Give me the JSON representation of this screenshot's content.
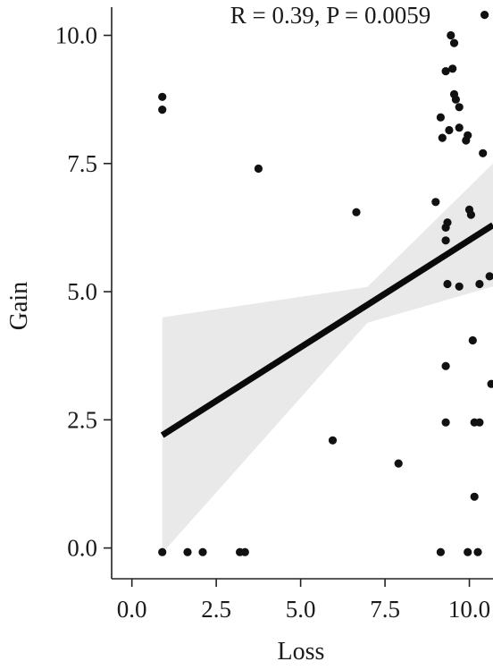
{
  "annotation": "R = 0.39, P = 0.0059",
  "chart_data": {
    "type": "scatter",
    "title": "",
    "xlabel": "Loss",
    "ylabel": "Gain",
    "xlim": [
      -0.6,
      10.7
    ],
    "ylim": [
      -0.6,
      10.55
    ],
    "x_ticks": [
      0.0,
      2.5,
      5.0,
      7.5,
      10.0
    ],
    "x_tick_labels": [
      "0.0",
      "2.5",
      "5.0",
      "7.5",
      "10.0"
    ],
    "y_ticks": [
      0.0,
      2.5,
      5.0,
      7.5,
      10.0
    ],
    "y_tick_labels": [
      "0.0",
      "2.5",
      "5.0",
      "7.5",
      "10.0"
    ],
    "grid": false,
    "legend": "none",
    "regression": {
      "x": [
        0.9,
        10.7
      ],
      "y": [
        2.2,
        6.3
      ],
      "ci_lower": [
        -0.1,
        5.1
      ],
      "ci_upper": [
        4.5,
        7.5
      ]
    },
    "points": [
      {
        "x": 0.9,
        "y": 8.8
      },
      {
        "x": 0.9,
        "y": 8.55
      },
      {
        "x": 0.9,
        "y": -0.08
      },
      {
        "x": 1.65,
        "y": -0.08
      },
      {
        "x": 2.1,
        "y": -0.08
      },
      {
        "x": 3.2,
        "y": -0.08
      },
      {
        "x": 3.35,
        "y": -0.08
      },
      {
        "x": 3.75,
        "y": 7.4
      },
      {
        "x": 5.95,
        "y": 2.1
      },
      {
        "x": 6.65,
        "y": 6.55
      },
      {
        "x": 7.9,
        "y": 1.65
      },
      {
        "x": 9.0,
        "y": 6.75
      },
      {
        "x": 9.15,
        "y": 8.4
      },
      {
        "x": 9.2,
        "y": 8.0
      },
      {
        "x": 9.15,
        "y": -0.08
      },
      {
        "x": 9.3,
        "y": 3.55
      },
      {
        "x": 9.3,
        "y": 2.45
      },
      {
        "x": 9.3,
        "y": 9.3
      },
      {
        "x": 9.3,
        "y": 6.0
      },
      {
        "x": 9.3,
        "y": 6.25
      },
      {
        "x": 9.35,
        "y": 6.35
      },
      {
        "x": 9.35,
        "y": 5.15
      },
      {
        "x": 9.4,
        "y": 8.15
      },
      {
        "x": 9.45,
        "y": 10.0
      },
      {
        "x": 9.5,
        "y": 9.35
      },
      {
        "x": 9.55,
        "y": 9.85
      },
      {
        "x": 9.55,
        "y": 8.85
      },
      {
        "x": 9.6,
        "y": 8.75
      },
      {
        "x": 9.7,
        "y": 8.6
      },
      {
        "x": 9.7,
        "y": 8.2
      },
      {
        "x": 9.7,
        "y": 5.1
      },
      {
        "x": 9.9,
        "y": 7.95
      },
      {
        "x": 9.95,
        "y": 8.05
      },
      {
        "x": 10.0,
        "y": 6.6
      },
      {
        "x": 10.05,
        "y": 6.5
      },
      {
        "x": 9.95,
        "y": -0.08
      },
      {
        "x": 10.1,
        "y": 4.05
      },
      {
        "x": 10.15,
        "y": 2.45
      },
      {
        "x": 10.15,
        "y": 1.0
      },
      {
        "x": 10.25,
        "y": -0.08
      },
      {
        "x": 10.3,
        "y": 5.15
      },
      {
        "x": 10.3,
        "y": 2.45
      },
      {
        "x": 10.4,
        "y": 7.7
      },
      {
        "x": 10.45,
        "y": 10.4
      },
      {
        "x": 10.6,
        "y": 5.3
      },
      {
        "x": 10.65,
        "y": 3.2
      }
    ]
  },
  "colors": {
    "points": "#111111",
    "regression_line": "#0a0a0a",
    "ci_band": "#e9e9e9",
    "axis": "#222222"
  }
}
